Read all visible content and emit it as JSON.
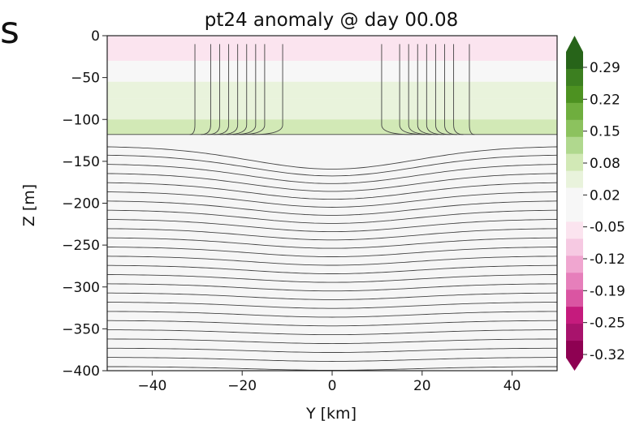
{
  "side_fragment": "s",
  "chart_data": {
    "type": "heatmap",
    "title": "pt24 anomaly @ day 00.08",
    "xlabel": "Y [km]",
    "ylabel": "Z [m]",
    "xlim": [
      -50,
      50
    ],
    "ylim": [
      -400,
      0
    ],
    "x_ticks": [
      -40,
      -20,
      0,
      20,
      40
    ],
    "x_tick_labels": [
      "−40",
      "−20",
      "0",
      "20",
      "40"
    ],
    "y_ticks": [
      0,
      -50,
      -100,
      -150,
      -200,
      -250,
      -300,
      -350,
      -400
    ],
    "y_tick_labels": [
      "0",
      "−50",
      "−100",
      "−150",
      "−200",
      "−250",
      "−300",
      "−350",
      "−400"
    ],
    "colormap": "PiYG",
    "colorbar": {
      "ticks": [
        0.29,
        0.22,
        0.15,
        0.08,
        0.02,
        -0.05,
        -0.12,
        -0.19,
        -0.25,
        -0.32
      ],
      "tick_labels": [
        "0.29",
        "0.22",
        "0.15",
        "0.08",
        "0.02",
        "-0.05",
        "-0.12",
        "-0.19",
        "-0.25",
        "-0.32"
      ],
      "extend": "both",
      "colors": [
        "#276419",
        "#3c7f20",
        "#4d9221",
        "#6fae3e",
        "#8cc25e",
        "#b0d88e",
        "#d2e9b6",
        "#e9f3dc",
        "#f7f7f7",
        "#f7f7f7",
        "#fbe4ef",
        "#f6c9e2",
        "#f0a6d0",
        "#e67fbb",
        "#da55a2",
        "#c51b7d",
        "#a8136c",
        "#8e0152"
      ]
    },
    "anomaly_bands": [
      {
        "z_top": 0,
        "z_bottom": -30,
        "value": -0.07
      },
      {
        "z_top": -30,
        "z_bottom": -55,
        "value": -0.02
      },
      {
        "z_top": -55,
        "z_bottom": -75,
        "value": 0.02
      },
      {
        "z_top": -75,
        "z_bottom": -100,
        "value": 0.05
      },
      {
        "z_top": -100,
        "z_bottom": -118,
        "value": 0.06
      }
    ],
    "contours": {
      "vertical_lines_y": [
        -30.5,
        -27,
        -25,
        -23,
        -21,
        -19,
        -17,
        -15,
        -11,
        11,
        15,
        17,
        19,
        21,
        23,
        25,
        27,
        30.5
      ],
      "vertical_line_top_z": -10,
      "mixed_layer_depth_z": -118,
      "stratified_levels_z": [
        -132,
        -142,
        -153,
        -164,
        -175,
        -186,
        -197,
        -208,
        -219,
        -230,
        -241,
        -252,
        -263,
        -274,
        -285,
        -296,
        -307,
        -318,
        -329,
        -340,
        -351,
        -362,
        -373,
        -384,
        -395
      ],
      "center_dip_z": 30,
      "dip_width_km": 26,
      "dip_decay_depth_m": 320
    }
  }
}
